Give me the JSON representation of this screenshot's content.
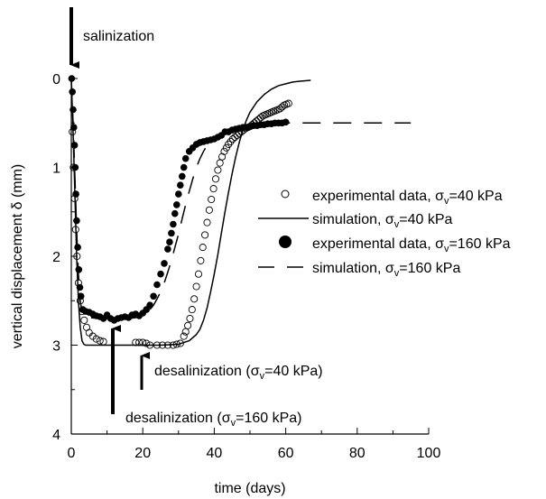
{
  "chart_data": {
    "type": "scatter",
    "xlabel": "time (days)",
    "ylabel": "vertical displacement δ (mm)",
    "xlim": [
      0,
      100
    ],
    "ylim": [
      4,
      0
    ],
    "y_inverted": true,
    "grid": false,
    "x_ticks": [
      0,
      20,
      40,
      60,
      80,
      100
    ],
    "x_tick_labels": [
      "0",
      "20",
      "40",
      "60",
      "80",
      "100"
    ],
    "y_ticks": [
      0,
      1,
      2,
      3,
      4
    ],
    "y_tick_labels": [
      "0",
      "1",
      "2",
      "3",
      "4"
    ],
    "legend_position": "right",
    "series": [
      {
        "name": "experimental data, σv=40 kPa",
        "marker": "open-circle",
        "x": [
          0.3,
          0.6,
          0.9,
          1.2,
          1.6,
          2.0,
          2.5,
          3.0,
          3.6,
          4.3,
          5.0,
          6.0,
          7.0,
          8.0,
          9.0,
          18.0,
          19.0,
          20.0,
          21.0,
          22.0,
          24.0,
          25.5,
          27.0,
          28.5,
          29.5,
          30.5,
          31.5,
          32.0,
          32.6,
          33.2,
          33.8,
          34.4,
          35.0,
          35.6,
          36.2,
          36.8,
          37.4,
          38.0,
          38.6,
          39.2,
          39.8,
          40.4,
          41.0,
          41.6,
          42.2,
          42.8,
          43.4,
          44.0,
          44.6,
          45.2,
          45.8,
          46.4,
          47.0,
          47.6,
          48.2,
          48.8,
          49.4,
          50.0,
          50.6,
          51.2,
          51.8,
          52.4,
          53.0,
          53.6,
          54.2,
          54.8,
          55.4,
          56.0,
          56.6,
          57.2,
          57.8,
          58.4,
          59.0,
          59.6,
          60.2,
          60.8
        ],
        "y": [
          0.6,
          1.0,
          1.35,
          1.7,
          2.0,
          2.3,
          2.5,
          2.62,
          2.72,
          2.8,
          2.86,
          2.9,
          2.93,
          2.95,
          2.96,
          2.97,
          2.97,
          2.97,
          2.98,
          3.0,
          3.0,
          3.0,
          3.0,
          3.0,
          2.99,
          2.98,
          2.9,
          2.85,
          2.78,
          2.7,
          2.6,
          2.48,
          2.34,
          2.2,
          2.05,
          1.9,
          1.76,
          1.62,
          1.48,
          1.36,
          1.24,
          1.13,
          1.03,
          0.95,
          0.88,
          0.82,
          0.78,
          0.74,
          0.71,
          0.68,
          0.66,
          0.64,
          0.62,
          0.6,
          0.58,
          0.56,
          0.55,
          0.54,
          0.52,
          0.5,
          0.48,
          0.46,
          0.44,
          0.42,
          0.41,
          0.4,
          0.39,
          0.38,
          0.37,
          0.36,
          0.35,
          0.34,
          0.32,
          0.3,
          0.29,
          0.28
        ]
      },
      {
        "name": "simulation, σv=40 kPa",
        "line": "solid",
        "x": [
          0,
          0.5,
          1,
          1.5,
          2,
          2.5,
          3,
          3.5,
          4,
          5,
          10,
          15,
          20,
          25,
          30,
          33,
          35,
          36,
          37,
          38,
          39,
          40,
          41,
          42,
          43,
          44,
          45,
          46,
          47,
          48,
          49,
          50,
          52,
          54,
          56,
          58,
          60,
          62,
          64,
          67
        ],
        "y": [
          0,
          0.6,
          1.3,
          2.0,
          2.5,
          2.8,
          2.95,
          2.99,
          3.0,
          3.0,
          3.0,
          3.0,
          3.0,
          3.0,
          2.99,
          2.95,
          2.88,
          2.82,
          2.72,
          2.58,
          2.4,
          2.2,
          1.98,
          1.74,
          1.5,
          1.28,
          1.07,
          0.88,
          0.72,
          0.58,
          0.47,
          0.38,
          0.26,
          0.18,
          0.12,
          0.08,
          0.06,
          0.04,
          0.03,
          0.02
        ]
      },
      {
        "name": "experimental data, σv=160 kPa",
        "marker": "filled-circle",
        "x": [
          0.1,
          0.3,
          0.5,
          0.7,
          0.9,
          1.1,
          1.3,
          1.5,
          1.8,
          2.1,
          2.4,
          2.7,
          3.2,
          4.0,
          5.0,
          6.0,
          7.0,
          8.0,
          9.0,
          10.0,
          11.0,
          12.0,
          13.0,
          14.0,
          15.0,
          16.0,
          17.0,
          18.0,
          19.0,
          20.0,
          21.0,
          22.0,
          23.0,
          24.0,
          25.0,
          26.0,
          27.0,
          27.5,
          28.0,
          28.5,
          29.0,
          29.5,
          30.0,
          30.5,
          31.0,
          31.5,
          32.0,
          33.0,
          34.0,
          35.0,
          36.0,
          37.0,
          38.0,
          39.0,
          40.0,
          41.0,
          42.0,
          43.0,
          44.0,
          45.0,
          46.0,
          47.0,
          48.0,
          49.0,
          50.0,
          51.0,
          52.0,
          53.0,
          54.0,
          55.0,
          56.0,
          57.0,
          58.0,
          59.0,
          60.0
        ],
        "y": [
          0.0,
          0.15,
          0.35,
          0.55,
          0.75,
          1.0,
          1.3,
          1.6,
          1.9,
          2.15,
          2.35,
          2.45,
          2.6,
          2.62,
          2.63,
          2.65,
          2.67,
          2.68,
          2.7,
          2.66,
          2.7,
          2.72,
          2.7,
          2.69,
          2.68,
          2.69,
          2.66,
          2.65,
          2.67,
          2.64,
          2.6,
          2.55,
          2.45,
          2.32,
          2.2,
          2.08,
          1.92,
          1.84,
          1.74,
          1.64,
          1.52,
          1.42,
          1.3,
          1.2,
          1.1,
          1.0,
          0.9,
          0.82,
          0.78,
          0.74,
          0.72,
          0.71,
          0.7,
          0.69,
          0.68,
          0.66,
          0.64,
          0.6,
          0.6,
          0.58,
          0.57,
          0.56,
          0.55,
          0.55,
          0.54,
          0.53,
          0.53,
          0.52,
          0.52,
          0.51,
          0.51,
          0.5,
          0.5,
          0.5,
          0.49
        ]
      },
      {
        "name": "simulation, σv=160 kPa",
        "line": "dashed",
        "x": [
          0,
          0.5,
          1,
          1.5,
          2,
          2.5,
          3,
          4,
          5,
          8,
          12,
          16,
          18,
          20,
          22,
          23,
          24,
          25,
          26,
          27,
          28,
          29,
          30,
          31,
          32,
          33,
          34,
          35,
          36,
          37,
          38,
          40,
          43,
          46,
          50,
          55,
          60,
          70,
          80,
          95
        ],
        "y": [
          0,
          0.5,
          1.1,
          1.7,
          2.2,
          2.5,
          2.63,
          2.68,
          2.69,
          2.7,
          2.7,
          2.7,
          2.69,
          2.66,
          2.6,
          2.55,
          2.48,
          2.4,
          2.3,
          2.18,
          2.05,
          1.9,
          1.75,
          1.58,
          1.42,
          1.27,
          1.13,
          1.0,
          0.9,
          0.82,
          0.75,
          0.66,
          0.6,
          0.56,
          0.53,
          0.51,
          0.5,
          0.5,
          0.5,
          0.5
        ]
      }
    ],
    "legend": [
      {
        "label": "experimental data, σ",
        "sub": "v",
        "tail": "=40 kPa",
        "symbol": "open-circle"
      },
      {
        "label": "simulation, σ",
        "sub": "v",
        "tail": "=40 kPa",
        "symbol": "solid"
      },
      {
        "label": "experimental data, σ",
        "sub": "v",
        "tail": "=160 kPa",
        "symbol": "filled-circle"
      },
      {
        "label": "simulation, σ",
        "sub": "v",
        "tail": "=160 kPa",
        "symbol": "dashed"
      }
    ],
    "annotations": {
      "salinization": {
        "text": "salinization",
        "x": 0
      },
      "desal_40": {
        "pre": "desalinization (σ",
        "sub": "v",
        "post": "=40 kPa)",
        "x": 19
      },
      "desal_160": {
        "pre": "desalinization (σ",
        "sub": "v",
        "post": "=160 kPa)",
        "x": 11.5
      }
    }
  }
}
